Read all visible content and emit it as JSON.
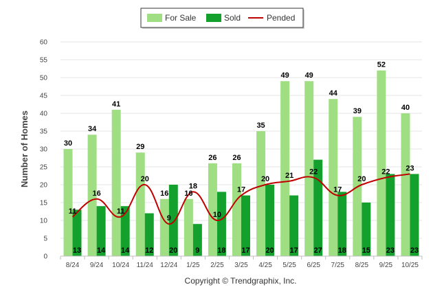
{
  "chart_data": {
    "type": "bar",
    "categories": [
      "8/24",
      "9/24",
      "10/24",
      "11/24",
      "12/24",
      "1/25",
      "2/25",
      "3/25",
      "4/25",
      "5/25",
      "6/25",
      "7/25",
      "8/25",
      "9/25",
      "10/25"
    ],
    "series": [
      {
        "name": "For Sale",
        "kind": "bar",
        "color": "#9fde83",
        "values": [
          30,
          34,
          41,
          29,
          16,
          16,
          26,
          26,
          35,
          49,
          49,
          44,
          39,
          52,
          40
        ]
      },
      {
        "name": "Sold",
        "kind": "bar",
        "color": "#14a02c",
        "values": [
          13,
          14,
          14,
          12,
          20,
          9,
          18,
          17,
          20,
          17,
          27,
          18,
          15,
          23,
          23
        ]
      },
      {
        "name": "Pended",
        "kind": "line",
        "color": "#c00000",
        "values": [
          11,
          16,
          11,
          20,
          9,
          18,
          10,
          17,
          20,
          21,
          22,
          17,
          20,
          22,
          23
        ]
      }
    ],
    "title": "",
    "xlabel": "",
    "ylabel": "Number of Homes",
    "ylim": [
      0,
      60
    ],
    "yticks": [
      0,
      5,
      10,
      15,
      20,
      25,
      30,
      35,
      40,
      45,
      50,
      55,
      60
    ],
    "grid": true,
    "legend_position": "top-center",
    "credit": "Copyright © Trendgraphix, Inc."
  }
}
